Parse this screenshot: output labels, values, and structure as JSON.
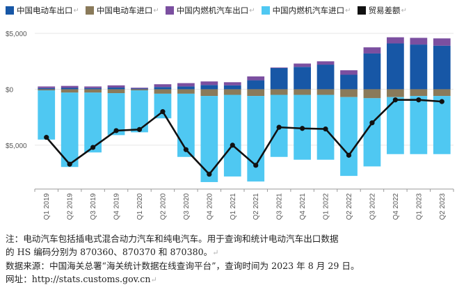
{
  "colors": {
    "ev_export": "#1757a6",
    "ev_import": "#8a7a5a",
    "ice_export": "#7b4fa0",
    "ice_import": "#4fc8f2",
    "balance": "#111111",
    "grid": "#e6e6e6"
  },
  "legend": [
    {
      "key": "ev_export",
      "label": "中国电动车出口",
      "mark": "↵"
    },
    {
      "key": "ev_import",
      "label": "中国电动车进口",
      "mark": "↵"
    },
    {
      "key": "ice_export",
      "label": "中国内燃机汽车出口",
      "mark": "↵"
    },
    {
      "key": "ice_import",
      "label": "中国内燃机汽车进口",
      "mark": "↵"
    },
    {
      "key": "balance",
      "label": "贸易差额",
      "mark": "↵"
    }
  ],
  "chart_data": {
    "type": "bar",
    "stacked": true,
    "title": "",
    "xlabel": "",
    "ylabel": "",
    "ylim": [
      -8800,
      5000
    ],
    "yticks": [
      5000,
      0,
      -5000
    ],
    "ytick_labels": [
      "$5,000",
      "$0",
      "$5,000"
    ],
    "categories": [
      "Q1 2019",
      "Q2 2019",
      "Q3 2019",
      "Q4 2019",
      "Q1 2020",
      "Q2 2020",
      "Q3 2020",
      "Q4 2020",
      "Q1 2021",
      "Q2 2021",
      "Q3 2021",
      "Q4 2021",
      "Q1 2022",
      "Q2 2022",
      "Q3 2022",
      "Q4 2022",
      "Q1 2023",
      "Q2 2023"
    ],
    "series": [
      {
        "key": "ev_export",
        "name": "中国电动车出口",
        "values": [
          100,
          120,
          100,
          150,
          60,
          200,
          250,
          380,
          350,
          800,
          1900,
          2000,
          2200,
          1300,
          3200,
          4100,
          4000,
          3900
        ]
      },
      {
        "key": "ice_export",
        "name": "中国内燃机汽车出口",
        "values": [
          150,
          180,
          150,
          200,
          80,
          250,
          300,
          320,
          280,
          350,
          50,
          300,
          300,
          400,
          550,
          550,
          600,
          650
        ]
      },
      {
        "key": "ev_import",
        "name": "中国电动车进口",
        "values": [
          -100,
          -300,
          -300,
          -350,
          -100,
          -400,
          -400,
          -600,
          -500,
          -600,
          -500,
          -500,
          -500,
          -700,
          -800,
          -700,
          -600,
          -600
        ]
      },
      {
        "key": "ice_import",
        "name": "中国内燃机汽车进口",
        "values": [
          -4400,
          -6650,
          -5350,
          -3750,
          -3750,
          -2200,
          -5650,
          -7700,
          -7300,
          -7650,
          -5550,
          -5800,
          -5800,
          -7050,
          -6100,
          -5100,
          -5200,
          -5200
        ]
      }
    ],
    "line": {
      "key": "balance",
      "name": "贸易差额",
      "values": [
        -4300,
        -6700,
        -5200,
        -3700,
        -3600,
        -2000,
        -5400,
        -7600,
        -5000,
        -6800,
        -3400,
        -3500,
        -3550,
        -5900,
        -3000,
        -950,
        -950,
        -1100
      ]
    }
  },
  "notes": {
    "line1": "注：电动汽车包括插电式混合动力汽车和纯电汽车。用于查询和统计电动汽车出口数据",
    "line2": "的 HS 编码分别为 870360、870370 和 870380。",
    "line3": "数据来源：中国海关总署“海关统计数据在线查询平台”，查询时间为 2023 年 8 月 29 日。",
    "line4": "网址：http://stats.customs.gov.cn",
    "mark": "↵"
  }
}
